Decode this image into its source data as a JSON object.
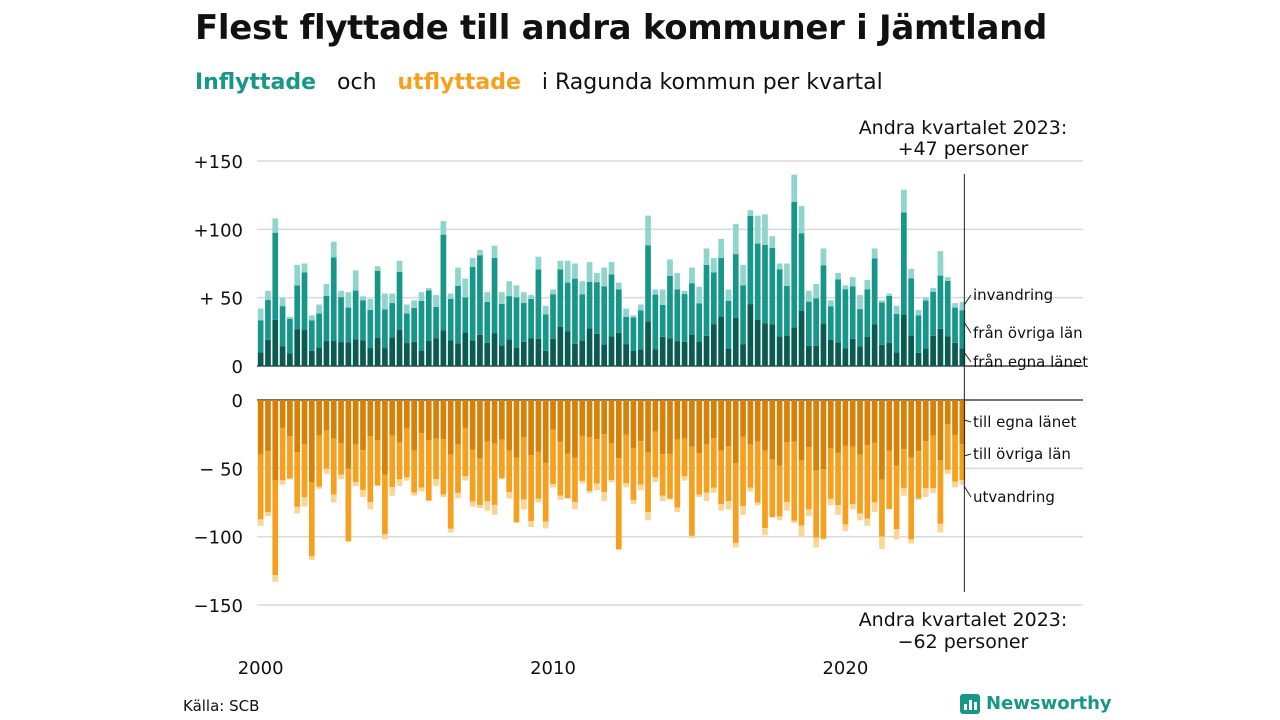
{
  "title": "Flest flyttade till andra kommuner i Jämtland",
  "subtitle": {
    "in_word": "Inflyttade",
    "and_word": "och",
    "out_word": "utflyttade",
    "rest": "i Ragunda  kommun  per  kvartal"
  },
  "source": "Källa: SCB",
  "logo": "Newsworthy",
  "colors": {
    "in_local": "#0a5c52",
    "in_other": "#17978a",
    "in_immig": "#8fd5cc",
    "out_local": "#d68209",
    "out_other": "#f5a01e",
    "out_emig": "#fbd596",
    "grid": "#d9d9d9"
  },
  "chart_data": {
    "type": "bar",
    "stacked": true,
    "x_axis": {
      "tick_labels": [
        "2000",
        "2010",
        "2020"
      ],
      "start_quarter": "2000 Q1",
      "end_quarter": "2023 Q2"
    },
    "y_axis_top": {
      "ylim": [
        0,
        150
      ],
      "tick_labels": [
        "0",
        "+ 50",
        "+100",
        "+150"
      ]
    },
    "y_axis_bottom": {
      "ylim": [
        -150,
        0
      ],
      "tick_labels": [
        "0",
        "− 50",
        "−100",
        "−150"
      ]
    },
    "grid": true,
    "in_total_values": [
      42,
      55,
      108,
      50,
      36,
      74,
      75,
      37,
      45,
      60,
      91,
      55,
      54,
      70,
      51,
      49,
      73,
      53,
      53,
      77,
      45,
      48,
      54,
      57,
      52,
      106,
      53,
      72,
      64,
      79,
      85,
      54,
      88,
      54,
      62,
      59,
      54,
      52,
      80,
      44,
      56,
      77,
      77,
      75,
      62,
      76,
      68,
      72,
      76,
      61,
      42,
      37,
      45,
      110,
      56,
      56,
      78,
      68,
      55,
      72,
      58,
      86,
      79,
      93,
      56,
      104,
      74,
      114,
      110,
      111,
      95,
      75,
      75,
      140,
      117,
      55,
      60,
      86,
      48,
      68,
      59,
      65,
      52,
      63,
      86,
      48,
      53,
      44,
      129,
      71,
      41,
      50,
      57,
      84,
      65,
      46,
      47
    ],
    "out_total_values": [
      -92,
      -85,
      -133,
      -62,
      -58,
      -83,
      -78,
      -117,
      -65,
      -54,
      -75,
      -58,
      -104,
      -63,
      -71,
      -80,
      -63,
      -102,
      -70,
      -63,
      -59,
      -70,
      -67,
      -74,
      -63,
      -71,
      -97,
      -72,
      -59,
      -78,
      -79,
      -81,
      -84,
      -58,
      -72,
      -90,
      -80,
      -93,
      -75,
      -94,
      -64,
      -73,
      -72,
      -80,
      -61,
      -68,
      -66,
      -74,
      -60,
      -110,
      -64,
      -76,
      -66,
      -88,
      -60,
      -74,
      -73,
      -82,
      -59,
      -101,
      -71,
      -74,
      -68,
      -81,
      -80,
      -108,
      -84,
      -67,
      -77,
      -99,
      -86,
      -88,
      -81,
      -90,
      -100,
      -85,
      -108,
      -102,
      -77,
      -84,
      -96,
      -80,
      -88,
      -92,
      -82,
      -109,
      -80,
      -102,
      -70,
      -105,
      -73,
      -71,
      -68,
      -97,
      -54,
      -64,
      -62
    ],
    "in_series_names": [
      "invandring",
      "från övriga län",
      "från egna länet"
    ],
    "out_series_names": [
      "till egna länet",
      "till övriga län",
      "utvandring"
    ],
    "annotation_top": [
      "Andra kvartalet 2023:",
      "+47 personer"
    ],
    "annotation_bottom": [
      "Andra kvartalet 2023:",
      "−62 personer"
    ]
  }
}
